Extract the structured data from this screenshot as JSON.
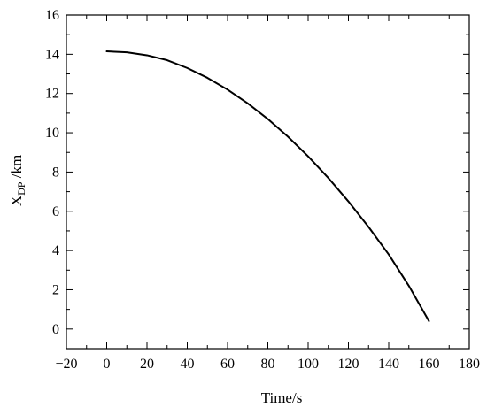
{
  "chart_data": {
    "type": "line",
    "title": "",
    "xlabel": "Time/s",
    "ylabel": {
      "main": "X",
      "subscript": "DP",
      "unit": " /km"
    },
    "xlim": [
      -20,
      180
    ],
    "ylim": [
      -1,
      16
    ],
    "x_ticks": [
      -20,
      0,
      20,
      40,
      60,
      80,
      100,
      120,
      140,
      160,
      180
    ],
    "y_ticks": [
      0,
      2,
      4,
      6,
      8,
      10,
      12,
      14,
      16
    ],
    "grid": false,
    "legend": "none",
    "series": [
      {
        "color": "#000000",
        "x": [
          0,
          10,
          20,
          30,
          40,
          50,
          60,
          70,
          80,
          90,
          100,
          110,
          120,
          130,
          140,
          150,
          160
        ],
        "y": [
          14.15,
          14.1,
          13.95,
          13.7,
          13.3,
          12.8,
          12.2,
          11.5,
          10.7,
          9.8,
          8.8,
          7.7,
          6.5,
          5.2,
          3.8,
          2.2,
          0.4
        ]
      }
    ]
  }
}
